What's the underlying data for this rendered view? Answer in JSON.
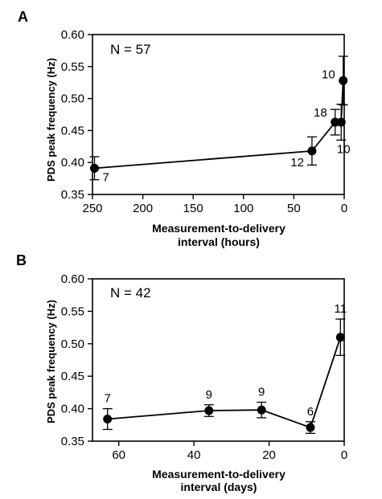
{
  "chart_data": [
    {
      "panel": "A",
      "type": "line",
      "ylabel": "PDS peak frequency (Hz)",
      "xlabel_lines": [
        "Measurement-to-delivery",
        "interval (hours)"
      ],
      "annotation": "N = 57",
      "xlim": [
        250,
        0
      ],
      "x_reversed": true,
      "xticks": [
        250,
        200,
        150,
        100,
        50,
        0
      ],
      "ylim": [
        0.35,
        0.6
      ],
      "yticks": [
        "0.35",
        "0.40",
        "0.45",
        "0.50",
        "0.55",
        "0.60"
      ],
      "points": [
        {
          "x": 248,
          "y": 0.391,
          "err": 0.018,
          "label": "7",
          "label_pos": "right-below"
        },
        {
          "x": 32,
          "y": 0.418,
          "err": 0.022,
          "label": "12",
          "label_pos": "left-below"
        },
        {
          "x": 9,
          "y": 0.463,
          "err": 0.02,
          "label": "18",
          "label_pos": "left-above"
        },
        {
          "x": 3,
          "y": 0.463,
          "err": 0.028,
          "label": "10",
          "label_pos": "below"
        },
        {
          "x": 1,
          "y": 0.528,
          "err": 0.038,
          "label": "10",
          "label_pos": "left"
        }
      ]
    },
    {
      "panel": "B",
      "type": "line",
      "ylabel": "PDS peak frequency (Hz)",
      "xlabel_lines": [
        "Measurement-to-delivery",
        "interval (days)"
      ],
      "annotation": "N = 42",
      "xlim": [
        67,
        0
      ],
      "x_reversed": true,
      "xticks": [
        60,
        40,
        20,
        0
      ],
      "ylim": [
        0.35,
        0.6
      ],
      "yticks": [
        "0.35",
        "0.40",
        "0.45",
        "0.50",
        "0.55",
        "0.60"
      ],
      "points": [
        {
          "x": 63,
          "y": 0.384,
          "err": 0.016,
          "label": "7",
          "label_pos": "above"
        },
        {
          "x": 36,
          "y": 0.397,
          "err": 0.009,
          "label": "9",
          "label_pos": "above"
        },
        {
          "x": 22,
          "y": 0.398,
          "err": 0.012,
          "label": "9",
          "label_pos": "above"
        },
        {
          "x": 9,
          "y": 0.371,
          "err": 0.009,
          "label": "6",
          "label_pos": "above"
        },
        {
          "x": 1,
          "y": 0.51,
          "err": 0.028,
          "label": "11",
          "label_pos": "above"
        }
      ]
    }
  ]
}
